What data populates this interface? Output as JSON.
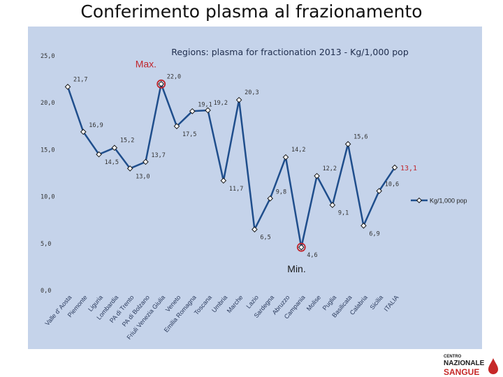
{
  "slide_title": "Conferimento plasma al frazionamento",
  "colors": {
    "line": "#1f4e8c",
    "marker_fill": "#ffffff",
    "highlight": "#c0262d",
    "panel": "#c5d3ea",
    "text": "#222222"
  },
  "logo": {
    "line1": "CENTRO",
    "line2": "NAZIONALE",
    "line3": "SANGUE"
  },
  "chart_data": {
    "type": "line",
    "title": "Regions: plasma for fractionation 2013 - Kg/1,000 pop",
    "ylim": [
      0,
      25
    ],
    "yticks": [
      "0,0",
      "5,0",
      "10,0",
      "15,0",
      "20,0",
      "25,0"
    ],
    "grid": false,
    "legend_position": "right",
    "categories": [
      "Valle d' Aosta",
      "Piemonte",
      "Liguria",
      "Lombardia",
      "PA di Trento",
      "PA di Bolzano",
      "Friuli Venezia Giulia",
      "Veneto",
      "Emilia Romagna",
      "Toscana",
      "Umbria",
      "Marche",
      "Lazio",
      "Sardegna",
      "Abruzzo",
      "Campania",
      "Molise",
      "Puglia",
      "Basilicata",
      "Calabria",
      "Sicilia",
      "ITALIA"
    ],
    "series": [
      {
        "name": "Kg/1,000 pop",
        "values": [
          21.7,
          16.9,
          14.5,
          15.2,
          13.0,
          13.7,
          22.0,
          17.5,
          19.1,
          19.2,
          11.7,
          20.3,
          6.5,
          9.8,
          14.2,
          4.6,
          12.2,
          9.1,
          15.6,
          6.9,
          10.6,
          13.1
        ],
        "labels": [
          "21,7",
          "16,9",
          "14,5",
          "15,2",
          "13,0",
          "13,7",
          "22,0",
          "17,5",
          "19,1",
          "19,2",
          "11,7",
          "20,3",
          "6,5",
          "9,8",
          "14,2",
          "4,6",
          "12,2",
          "9,1",
          "15,6",
          "6,9",
          "10,6",
          "13,1"
        ]
      }
    ],
    "annotations": [
      {
        "text": "Max.",
        "category": "Friuli Venezia Giulia"
      },
      {
        "text": "Min.",
        "category": "Campania"
      }
    ]
  }
}
